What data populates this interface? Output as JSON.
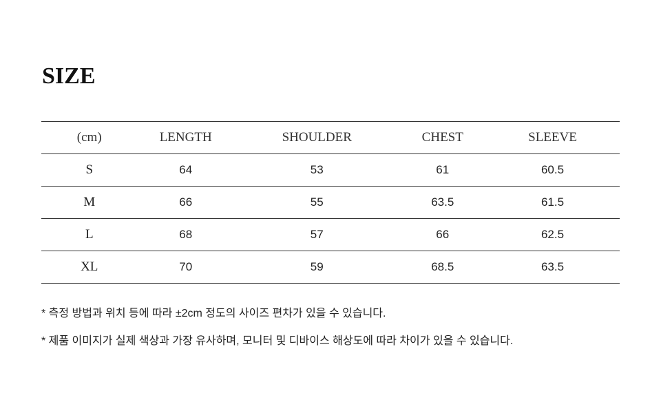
{
  "title": "SIZE",
  "table": {
    "headers": [
      "(cm)",
      "LENGTH",
      "SHOULDER",
      "CHEST",
      "SLEEVE"
    ],
    "rows": [
      [
        "S",
        "64",
        "53",
        "61",
        "60.5"
      ],
      [
        "M",
        "66",
        "55",
        "63.5",
        "61.5"
      ],
      [
        "L",
        "68",
        "57",
        "66",
        "62.5"
      ],
      [
        "XL",
        "70",
        "59",
        "68.5",
        "63.5"
      ]
    ]
  },
  "notes": [
    "* 측정 방법과 위치 등에 따라 ±2cm 정도의 사이즈 편차가 있을 수 있습니다.",
    "* 제품 이미지가 실제 색상과 가장 유사하며, 모니터 및 디바이스 해상도에 따라 차이가 있을 수 있습니다."
  ]
}
